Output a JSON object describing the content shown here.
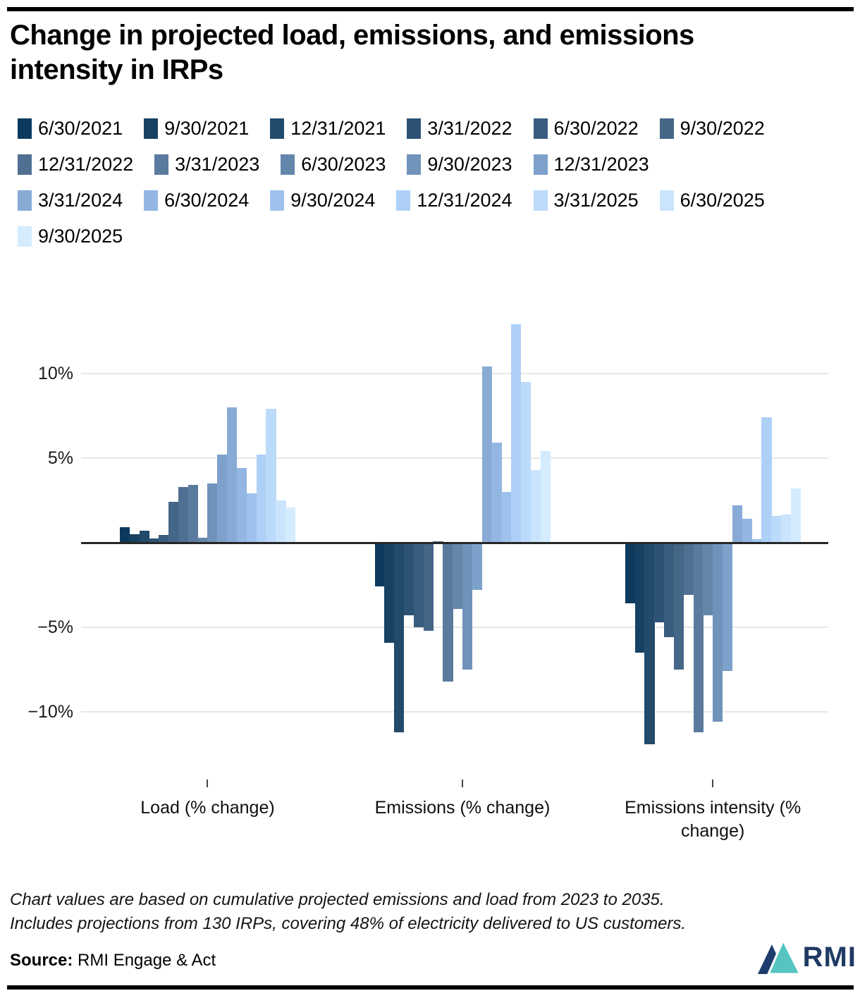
{
  "title": "Change in projected load, emissions, and emissions intensity in IRPs",
  "chart_data": {
    "type": "bar",
    "title": "Change in projected load, emissions, and emissions intensity in IRPs",
    "categories": [
      "Load (% change)",
      "Emissions (% change)",
      "Emissions intensity (% change)"
    ],
    "series": [
      {
        "name": "6/30/2021",
        "color": "#0c3a5e",
        "values": [
          0.9,
          -2.6,
          -3.6
        ]
      },
      {
        "name": "9/30/2021",
        "color": "#174162",
        "values": [
          0.5,
          -5.9,
          -6.5
        ]
      },
      {
        "name": "12/31/2021",
        "color": "#224a6b",
        "values": [
          0.7,
          -11.2,
          -11.9
        ]
      },
      {
        "name": "3/31/2022",
        "color": "#2d5374",
        "values": [
          0.25,
          -4.3,
          -4.7
        ]
      },
      {
        "name": "6/30/2022",
        "color": "#395d7e",
        "values": [
          0.45,
          -5.0,
          -5.6
        ]
      },
      {
        "name": "9/30/2022",
        "color": "#446687",
        "values": [
          2.4,
          -5.2,
          -7.5
        ]
      },
      {
        "name": "12/31/2022",
        "color": "#4f7092",
        "values": [
          3.3,
          0.1,
          -3.1
        ]
      },
      {
        "name": "3/31/2023",
        "color": "#5a7a9e",
        "values": [
          3.4,
          -8.2,
          -11.2
        ]
      },
      {
        "name": "6/30/2023",
        "color": "#6486ab",
        "values": [
          0.3,
          -3.9,
          -4.3
        ]
      },
      {
        "name": "9/30/2023",
        "color": "#7093bb",
        "values": [
          3.5,
          -7.5,
          -10.6
        ]
      },
      {
        "name": "12/31/2023",
        "color": "#7da1ca",
        "values": [
          5.2,
          -2.8,
          -7.6
        ]
      },
      {
        "name": "3/31/2024",
        "color": "#88abd6",
        "values": [
          8.0,
          10.4,
          2.2
        ]
      },
      {
        "name": "6/30/2024",
        "color": "#93b6e2",
        "values": [
          4.4,
          5.9,
          1.4
        ]
      },
      {
        "name": "9/30/2024",
        "color": "#9fc2ed",
        "values": [
          2.9,
          3.0,
          0.2
        ]
      },
      {
        "name": "12/31/2024",
        "color": "#aed0f7",
        "values": [
          5.2,
          12.9,
          7.4
        ]
      },
      {
        "name": "3/31/2025",
        "color": "#bcdaf9",
        "values": [
          7.9,
          9.5,
          1.6
        ]
      },
      {
        "name": "6/30/2025",
        "color": "#c9e4fc",
        "values": [
          2.5,
          4.3,
          1.65
        ]
      },
      {
        "name": "9/30/2025",
        "color": "#d4ecfe",
        "values": [
          2.1,
          5.4,
          3.2
        ]
      }
    ],
    "yticks": [
      {
        "label": "10%",
        "value": 10
      },
      {
        "label": "5%",
        "value": 5
      },
      {
        "label": "−5%",
        "value": -5
      },
      {
        "label": "−10%",
        "value": -10
      }
    ],
    "ylim": [
      -12.5,
      14.2
    ],
    "xlabel": "",
    "ylabel": "",
    "grid": true,
    "legend_position": "top",
    "legend_rows": [
      [
        0,
        1,
        2,
        3,
        4,
        5
      ],
      [
        6,
        7,
        8,
        9,
        10
      ],
      [
        11,
        12,
        13,
        14,
        15,
        16
      ],
      [
        17
      ]
    ]
  },
  "footnotes": {
    "line1": "Chart values are based on cumulative projected emissions and load from 2023 to 2035.",
    "line2": "Includes projections from 130 IRPs, covering 48% of electricity delivered to US customers."
  },
  "source": {
    "label": "Source:",
    "text": " RMI Engage & Act"
  },
  "logo": {
    "text": "RMI",
    "navy": "#1e3c6d",
    "teal": "#56c5c0"
  }
}
